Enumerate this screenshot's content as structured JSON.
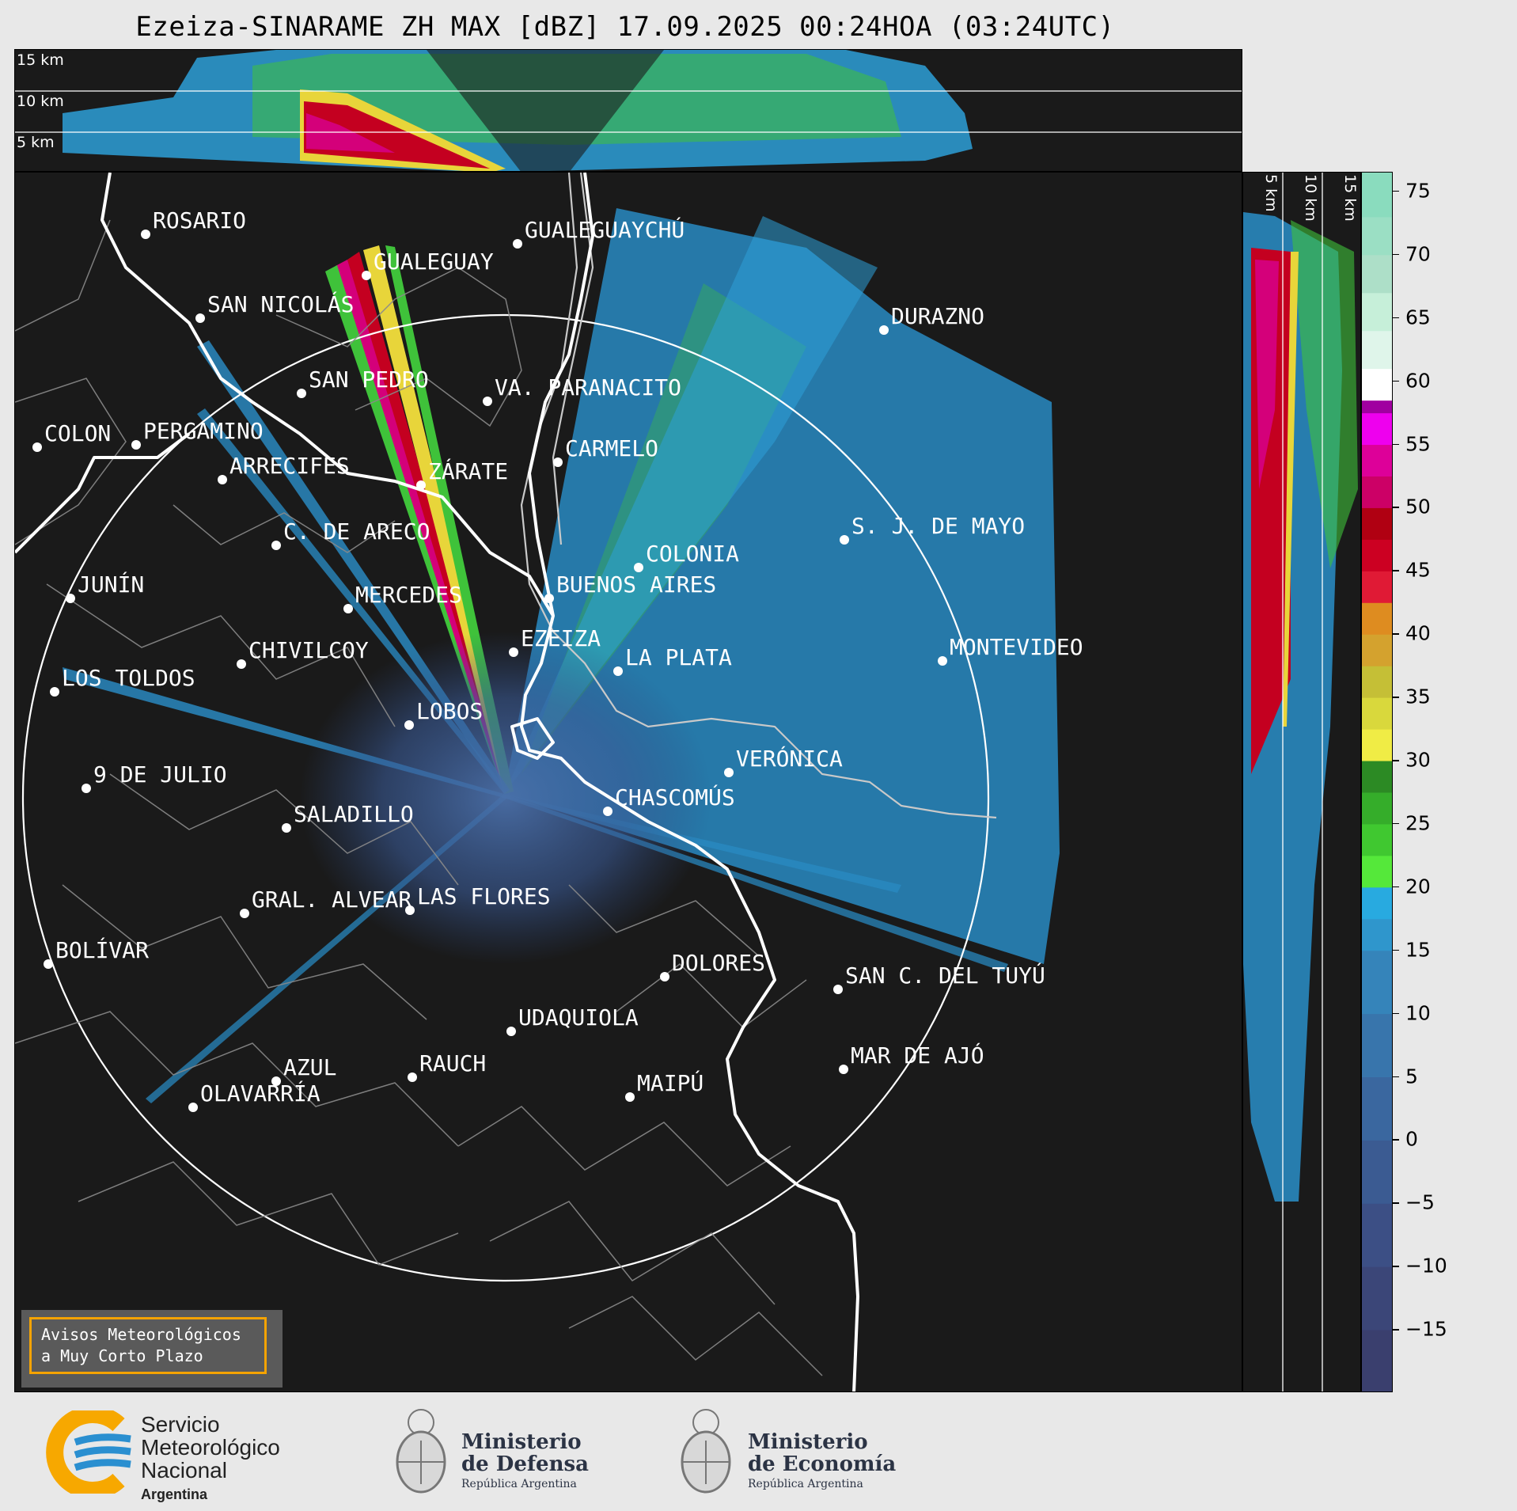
{
  "title": "Ezeiza-SINARAME ZH MAX [dBZ] 17.09.2025 00:24HOA (03:24UTC)",
  "top_section_labels": [
    "15 km",
    "10 km",
    "5 km"
  ],
  "right_section_labels": [
    "5 km",
    "10 km",
    "15 km"
  ],
  "colorbar": {
    "ticks": [
      "75",
      "70",
      "65",
      "60",
      "55",
      "50",
      "45",
      "40",
      "35",
      "30",
      "25",
      "20",
      "15",
      "10",
      "5",
      "0",
      "−5",
      "−10",
      "−15"
    ],
    "range": [
      -20,
      76.5
    ]
  },
  "cities": [
    {
      "name": "ROSARIO"
    },
    {
      "name": "GUALEGUAYCHÚ"
    },
    {
      "name": "GUALEGUAY"
    },
    {
      "name": "SAN NICOLÁS"
    },
    {
      "name": "DURAZNO"
    },
    {
      "name": "SAN PEDRO"
    },
    {
      "name": "VA. PARANACITO"
    },
    {
      "name": "COLON"
    },
    {
      "name": "PERGAMINO"
    },
    {
      "name": "CARMELO"
    },
    {
      "name": "ARRECIFES"
    },
    {
      "name": "ZÁRATE"
    },
    {
      "name": "S. J. DE MAYO"
    },
    {
      "name": "C. DE ARECO"
    },
    {
      "name": "COLONIA"
    },
    {
      "name": "JUNÍN"
    },
    {
      "name": "BUENOS AIRES"
    },
    {
      "name": "MERCEDES"
    },
    {
      "name": "MONTEVIDEO"
    },
    {
      "name": "EZEIZA"
    },
    {
      "name": "CHIVILCOY"
    },
    {
      "name": "LA PLATA"
    },
    {
      "name": "LOS TOLDOS"
    },
    {
      "name": "LOBOS"
    },
    {
      "name": "VERÓNICA"
    },
    {
      "name": "9 DE JULIO"
    },
    {
      "name": "CHASCOMÚS"
    },
    {
      "name": "SALADILLO"
    },
    {
      "name": "GRAL. ALVEAR"
    },
    {
      "name": "LAS FLORES"
    },
    {
      "name": "BOLÍVAR"
    },
    {
      "name": "DOLORES"
    },
    {
      "name": "SAN C. DEL TUYÚ"
    },
    {
      "name": "UDAQUIOLA"
    },
    {
      "name": "MAR DE AJÓ"
    },
    {
      "name": "RAUCH"
    },
    {
      "name": "AZUL"
    },
    {
      "name": "MAIPÚ"
    },
    {
      "name": "OLAVARRÍA"
    }
  ],
  "aviso": {
    "line1": "Avisos Meteorológicos",
    "line2": "a Muy Corto Plazo"
  },
  "footer": {
    "smn": {
      "line1": "Servicio",
      "line2": "Meteorológico",
      "line3": "Nacional",
      "line4": "Argentina"
    },
    "defensa": {
      "line1": "Ministerio",
      "line2": "de Defensa",
      "line3": "República Argentina"
    },
    "economia": {
      "line1": "Ministerio",
      "line2": "de Economía",
      "line3": "República Argentina"
    }
  }
}
